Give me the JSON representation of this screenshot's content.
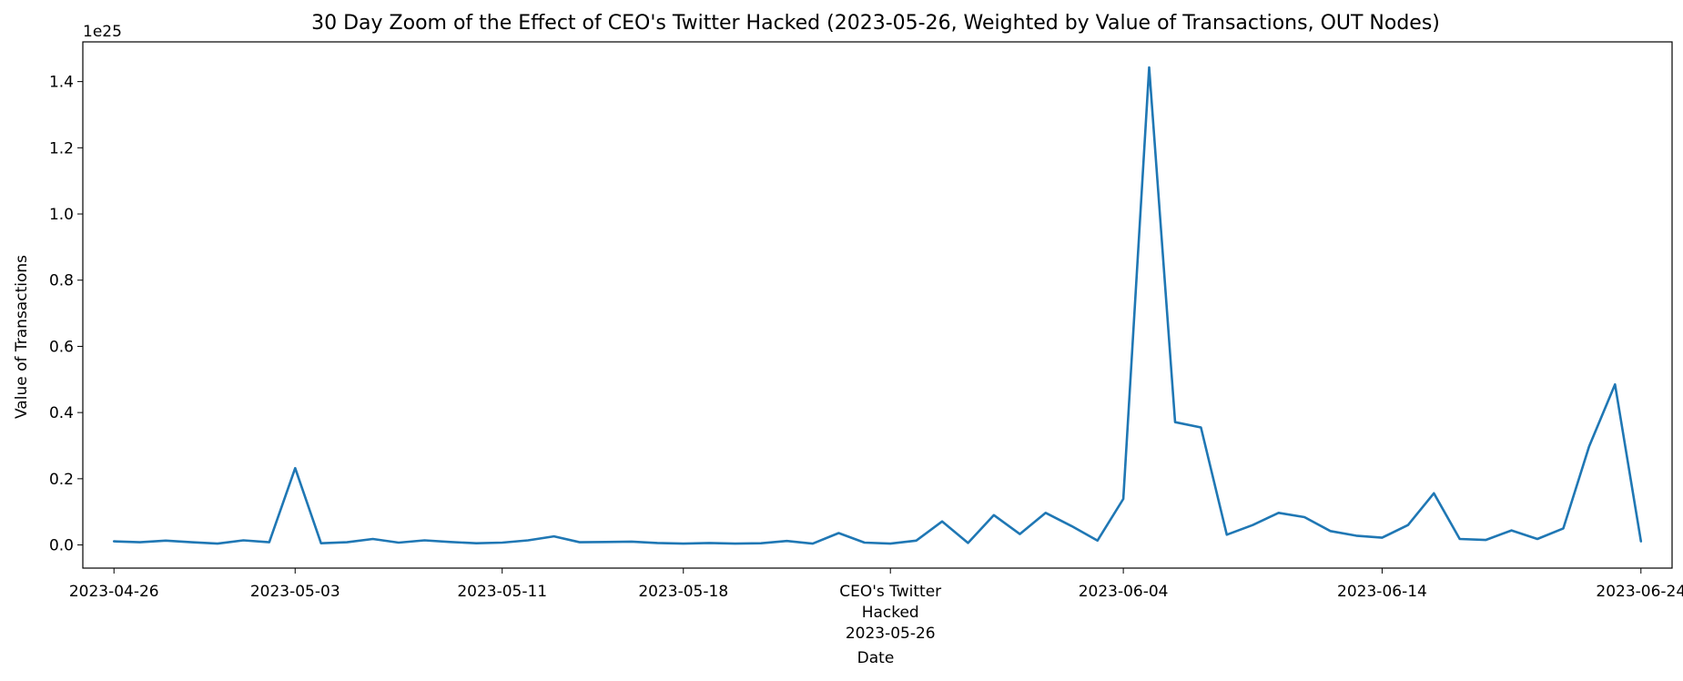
{
  "chart_data": {
    "type": "line",
    "title": "30 Day Zoom of the Effect of CEO's Twitter Hacked (2023-05-26, Weighted by Value of Transactions, OUT Nodes)",
    "xlabel": "Date",
    "ylabel": "Value of Transactions",
    "y_scale_label": "1e25",
    "ylim": [
      -0.07,
      1.52
    ],
    "yticks": [
      0.0,
      0.2,
      0.4,
      0.6,
      0.8,
      1.0,
      1.2,
      1.4
    ],
    "ytick_labels": [
      "0.0",
      "0.2",
      "0.4",
      "0.6",
      "0.8",
      "1.0",
      "1.2",
      "1.4"
    ],
    "x_start": "2023-04-26",
    "x_end": "2023-06-24",
    "xticks": [
      {
        "date": "2023-04-26",
        "label": "2023-04-26"
      },
      {
        "date": "2023-05-03",
        "label": "2023-05-03"
      },
      {
        "date": "2023-05-11",
        "label": "2023-05-11"
      },
      {
        "date": "2023-05-18",
        "label": "2023-05-18"
      },
      {
        "date": "2023-05-26",
        "label": "2023-05-26"
      },
      {
        "date": "2023-06-04",
        "label": "2023-06-04"
      },
      {
        "date": "2023-06-14",
        "label": "2023-06-14"
      },
      {
        "date": "2023-06-24",
        "label": "2023-06-24"
      }
    ],
    "event": {
      "date": "2023-05-26",
      "label_line1": "CEO's Twitter",
      "label_line2": "Hacked"
    },
    "grid": false,
    "series": [
      {
        "color": "#1f77b4",
        "x": [
          "2023-04-26",
          "2023-04-27",
          "2023-04-28",
          "2023-04-29",
          "2023-04-30",
          "2023-05-01",
          "2023-05-02",
          "2023-05-03",
          "2023-05-04",
          "2023-05-05",
          "2023-05-06",
          "2023-05-07",
          "2023-05-08",
          "2023-05-09",
          "2023-05-10",
          "2023-05-11",
          "2023-05-12",
          "2023-05-13",
          "2023-05-14",
          "2023-05-15",
          "2023-05-16",
          "2023-05-17",
          "2023-05-18",
          "2023-05-19",
          "2023-05-20",
          "2023-05-21",
          "2023-05-22",
          "2023-05-23",
          "2023-05-24",
          "2023-05-25",
          "2023-05-26",
          "2023-05-27",
          "2023-05-28",
          "2023-05-29",
          "2023-05-30",
          "2023-05-31",
          "2023-06-01",
          "2023-06-02",
          "2023-06-03",
          "2023-06-04",
          "2023-06-05",
          "2023-06-06",
          "2023-06-07",
          "2023-06-08",
          "2023-06-09",
          "2023-06-10",
          "2023-06-11",
          "2023-06-12",
          "2023-06-13",
          "2023-06-14",
          "2023-06-15",
          "2023-06-16",
          "2023-06-17",
          "2023-06-18",
          "2023-06-19",
          "2023-06-20",
          "2023-06-21",
          "2023-06-22",
          "2023-06-23",
          "2023-06-24"
        ],
        "values": [
          0.011,
          0.008,
          0.013,
          0.008,
          0.004,
          0.014,
          0.008,
          0.232,
          0.005,
          0.008,
          0.018,
          0.007,
          0.014,
          0.009,
          0.005,
          0.007,
          0.014,
          0.026,
          0.008,
          0.009,
          0.01,
          0.006,
          0.004,
          0.006,
          0.004,
          0.005,
          0.012,
          0.004,
          0.036,
          0.007,
          0.004,
          0.013,
          0.071,
          0.006,
          0.09,
          0.033,
          0.097,
          0.057,
          0.013,
          0.139,
          1.443,
          0.371,
          0.355,
          0.031,
          0.06,
          0.097,
          0.084,
          0.042,
          0.028,
          0.022,
          0.06,
          0.156,
          0.018,
          0.015,
          0.044,
          0.018,
          0.05,
          0.298,
          0.485,
          0.011
        ]
      }
    ]
  }
}
